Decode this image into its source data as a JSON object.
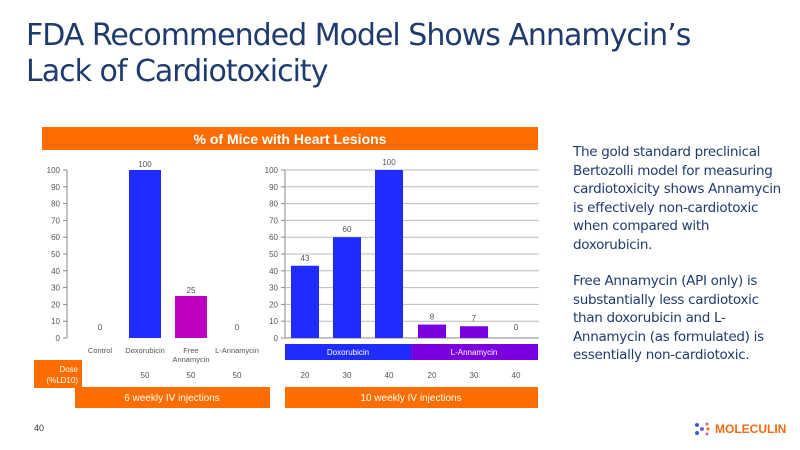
{
  "title": [
    "FDA Recommended Model Shows Annamycin’s",
    "Lack of Cardiotoxicity"
  ],
  "description": [
    "The gold standard preclinical Bertozolli model for measuring cardiotoxicity shows Annamycin is effectively non-cardiotoxic when compared with doxorubicin.",
    "Free Annamycin (API only) is substantially less cardiotoxic than doxorubicin and L-Annamycin (as formulated) is essentially non-cardiotoxic."
  ],
  "page_number": "40",
  "logo_text": "MOLECULIN",
  "colors": {
    "orange": "#ff6d00",
    "blue": "#1f2cff",
    "magenta": "#c000c0",
    "purple": "#7a00e0",
    "title": "#1f3b6e"
  },
  "chart_data": [
    {
      "type": "bar",
      "title": "% of Mice with Heart Lesions",
      "ylim": [
        0,
        100
      ],
      "yticks": [
        0,
        10,
        20,
        30,
        40,
        50,
        60,
        70,
        80,
        90,
        100
      ],
      "grid": false,
      "categories": [
        "Control",
        "Doxorubicin",
        "Free Annamycin",
        "L-Annamycin"
      ],
      "values": [
        0,
        100,
        25,
        0
      ],
      "dose_label": "Dose (%LD10)",
      "doses": [
        "",
        "50",
        "50",
        "50"
      ],
      "footer": "6 weekly IV injections"
    },
    {
      "type": "bar",
      "ylim": [
        0,
        100
      ],
      "yticks": [
        0,
        10,
        20,
        30,
        40,
        50,
        60,
        70,
        80,
        90,
        100
      ],
      "grid": true,
      "groups": [
        {
          "name": "Doxorubicin",
          "doses": [
            "20",
            "30",
            "40"
          ],
          "values": [
            43,
            60,
            100
          ]
        },
        {
          "name": "L-Annamycin",
          "doses": [
            "20",
            "30",
            "40"
          ],
          "values": [
            8,
            7,
            0
          ]
        }
      ],
      "footer": "10 weekly IV injections"
    }
  ]
}
